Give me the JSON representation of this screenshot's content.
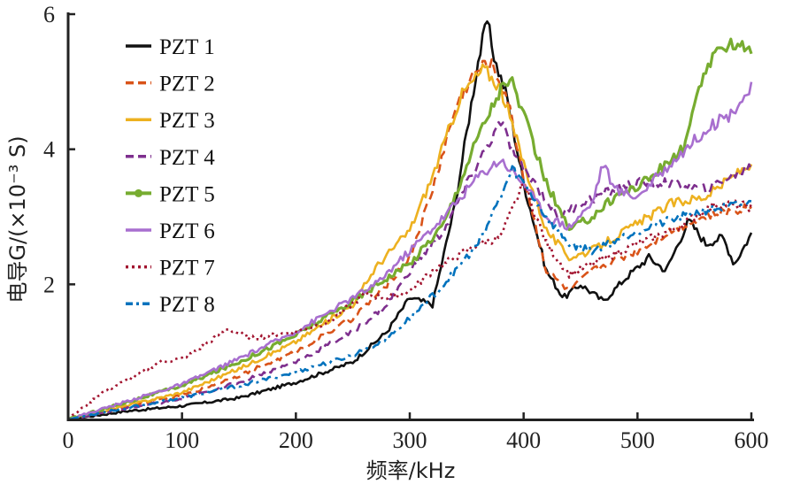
{
  "chart_data": {
    "type": "line",
    "title": "",
    "xlabel": "频率/kHz",
    "ylabel": "电导G/(×10⁻³ S)",
    "xlim": [
      0,
      600
    ],
    "ylim": [
      0,
      6
    ],
    "xticks": [
      "0",
      "100",
      "200",
      "300",
      "400",
      "500",
      "600"
    ],
    "yticks": [
      "2",
      "4",
      "6"
    ],
    "grid": false,
    "legend_position": "top-left",
    "series": [
      {
        "name": "PZT 1",
        "color": "#111111",
        "style": "solid",
        "points": [
          [
            0,
            0
          ],
          [
            50,
            0.12
          ],
          [
            100,
            0.2
          ],
          [
            150,
            0.32
          ],
          [
            200,
            0.55
          ],
          [
            250,
            0.85
          ],
          [
            280,
            1.3
          ],
          [
            300,
            1.8
          ],
          [
            320,
            1.7
          ],
          [
            340,
            3.2
          ],
          [
            360,
            5.3
          ],
          [
            368,
            5.9
          ],
          [
            375,
            5.3
          ],
          [
            385,
            4.8
          ],
          [
            400,
            3.5
          ],
          [
            420,
            2.2
          ],
          [
            435,
            1.8
          ],
          [
            450,
            2.0
          ],
          [
            470,
            1.75
          ],
          [
            490,
            2.1
          ],
          [
            510,
            2.4
          ],
          [
            525,
            2.2
          ],
          [
            545,
            2.95
          ],
          [
            560,
            2.6
          ],
          [
            575,
            2.7
          ],
          [
            585,
            2.3
          ],
          [
            600,
            2.75
          ]
        ]
      },
      {
        "name": "PZT 2",
        "color": "#d95319",
        "style": "dashed",
        "points": [
          [
            0,
            0
          ],
          [
            50,
            0.18
          ],
          [
            100,
            0.35
          ],
          [
            150,
            0.65
          ],
          [
            200,
            1.0
          ],
          [
            250,
            1.5
          ],
          [
            275,
            1.9
          ],
          [
            300,
            2.4
          ],
          [
            320,
            3.4
          ],
          [
            340,
            4.6
          ],
          [
            355,
            5.1
          ],
          [
            370,
            5.3
          ],
          [
            385,
            4.8
          ],
          [
            400,
            3.6
          ],
          [
            420,
            2.2
          ],
          [
            440,
            1.9
          ],
          [
            460,
            2.2
          ],
          [
            500,
            2.5
          ],
          [
            530,
            2.8
          ],
          [
            560,
            3.0
          ],
          [
            600,
            3.15
          ]
        ]
      },
      {
        "name": "PZT 3",
        "color": "#edb120",
        "style": "solid",
        "points": [
          [
            0,
            0
          ],
          [
            50,
            0.2
          ],
          [
            100,
            0.4
          ],
          [
            150,
            0.75
          ],
          [
            200,
            1.15
          ],
          [
            250,
            1.7
          ],
          [
            270,
            2.25
          ],
          [
            300,
            2.8
          ],
          [
            320,
            3.6
          ],
          [
            345,
            4.8
          ],
          [
            365,
            5.2
          ],
          [
            380,
            4.9
          ],
          [
            400,
            3.8
          ],
          [
            420,
            2.8
          ],
          [
            440,
            2.4
          ],
          [
            460,
            2.5
          ],
          [
            500,
            2.9
          ],
          [
            530,
            3.2
          ],
          [
            560,
            3.3
          ],
          [
            600,
            3.8
          ]
        ]
      },
      {
        "name": "PZT 4",
        "color": "#7e2f8e",
        "style": "dashed",
        "points": [
          [
            0,
            0
          ],
          [
            50,
            0.16
          ],
          [
            100,
            0.3
          ],
          [
            150,
            0.55
          ],
          [
            200,
            0.85
          ],
          [
            250,
            1.3
          ],
          [
            280,
            1.7
          ],
          [
            300,
            2.2
          ],
          [
            330,
            2.8
          ],
          [
            360,
            3.8
          ],
          [
            380,
            4.4
          ],
          [
            395,
            3.8
          ],
          [
            410,
            3.5
          ],
          [
            430,
            3.0
          ],
          [
            450,
            3.2
          ],
          [
            480,
            3.4
          ],
          [
            500,
            3.5
          ],
          [
            530,
            3.5
          ],
          [
            560,
            3.4
          ],
          [
            600,
            3.75
          ]
        ]
      },
      {
        "name": "PZT 5",
        "color": "#77ac30",
        "style": "solid-dots",
        "points": [
          [
            0,
            0
          ],
          [
            50,
            0.25
          ],
          [
            100,
            0.5
          ],
          [
            150,
            0.85
          ],
          [
            200,
            1.25
          ],
          [
            250,
            1.75
          ],
          [
            280,
            2.1
          ],
          [
            300,
            2.3
          ],
          [
            330,
            2.9
          ],
          [
            360,
            4.2
          ],
          [
            380,
            4.9
          ],
          [
            390,
            5.0
          ],
          [
            400,
            4.5
          ],
          [
            420,
            3.5
          ],
          [
            440,
            2.8
          ],
          [
            460,
            3.0
          ],
          [
            480,
            3.3
          ],
          [
            500,
            3.45
          ],
          [
            520,
            3.7
          ],
          [
            540,
            4.0
          ],
          [
            560,
            5.2
          ],
          [
            580,
            5.6
          ],
          [
            600,
            5.5
          ]
        ]
      },
      {
        "name": "PZT 6",
        "color": "#a86fcf",
        "style": "solid",
        "points": [
          [
            0,
            0
          ],
          [
            50,
            0.26
          ],
          [
            100,
            0.52
          ],
          [
            150,
            0.9
          ],
          [
            200,
            1.3
          ],
          [
            250,
            1.8
          ],
          [
            270,
            2.0
          ],
          [
            300,
            2.5
          ],
          [
            330,
            3.0
          ],
          [
            360,
            3.6
          ],
          [
            380,
            3.85
          ],
          [
            400,
            3.5
          ],
          [
            420,
            3.0
          ],
          [
            440,
            2.85
          ],
          [
            460,
            3.2
          ],
          [
            470,
            3.8
          ],
          [
            480,
            3.4
          ],
          [
            500,
            3.3
          ],
          [
            530,
            3.8
          ],
          [
            560,
            4.3
          ],
          [
            580,
            4.5
          ],
          [
            600,
            4.9
          ]
        ]
      },
      {
        "name": "PZT 7",
        "color": "#a2142f",
        "style": "dotted",
        "points": [
          [
            0,
            0
          ],
          [
            30,
            0.4
          ],
          [
            60,
            0.65
          ],
          [
            80,
            0.85
          ],
          [
            100,
            0.9
          ],
          [
            120,
            1.1
          ],
          [
            140,
            1.35
          ],
          [
            160,
            1.2
          ],
          [
            180,
            1.25
          ],
          [
            200,
            1.3
          ],
          [
            230,
            1.45
          ],
          [
            260,
            1.85
          ],
          [
            280,
            1.8
          ],
          [
            300,
            1.9
          ],
          [
            320,
            2.2
          ],
          [
            340,
            2.4
          ],
          [
            360,
            2.6
          ],
          [
            380,
            2.7
          ],
          [
            400,
            3.5
          ],
          [
            420,
            2.6
          ],
          [
            440,
            2.15
          ],
          [
            460,
            2.3
          ],
          [
            500,
            2.6
          ],
          [
            530,
            2.8
          ],
          [
            570,
            3.2
          ],
          [
            600,
            3.15
          ]
        ]
      },
      {
        "name": "PZT 8",
        "color": "#0072bd",
        "style": "dash-dot",
        "points": [
          [
            0,
            0
          ],
          [
            50,
            0.17
          ],
          [
            100,
            0.32
          ],
          [
            150,
            0.5
          ],
          [
            200,
            0.7
          ],
          [
            250,
            0.95
          ],
          [
            280,
            1.2
          ],
          [
            300,
            1.5
          ],
          [
            330,
            2.0
          ],
          [
            360,
            2.6
          ],
          [
            380,
            3.3
          ],
          [
            390,
            3.7
          ],
          [
            400,
            3.5
          ],
          [
            420,
            3.0
          ],
          [
            440,
            2.6
          ],
          [
            460,
            2.5
          ],
          [
            500,
            2.8
          ],
          [
            530,
            2.95
          ],
          [
            560,
            3.1
          ],
          [
            600,
            3.2
          ]
        ]
      }
    ]
  }
}
